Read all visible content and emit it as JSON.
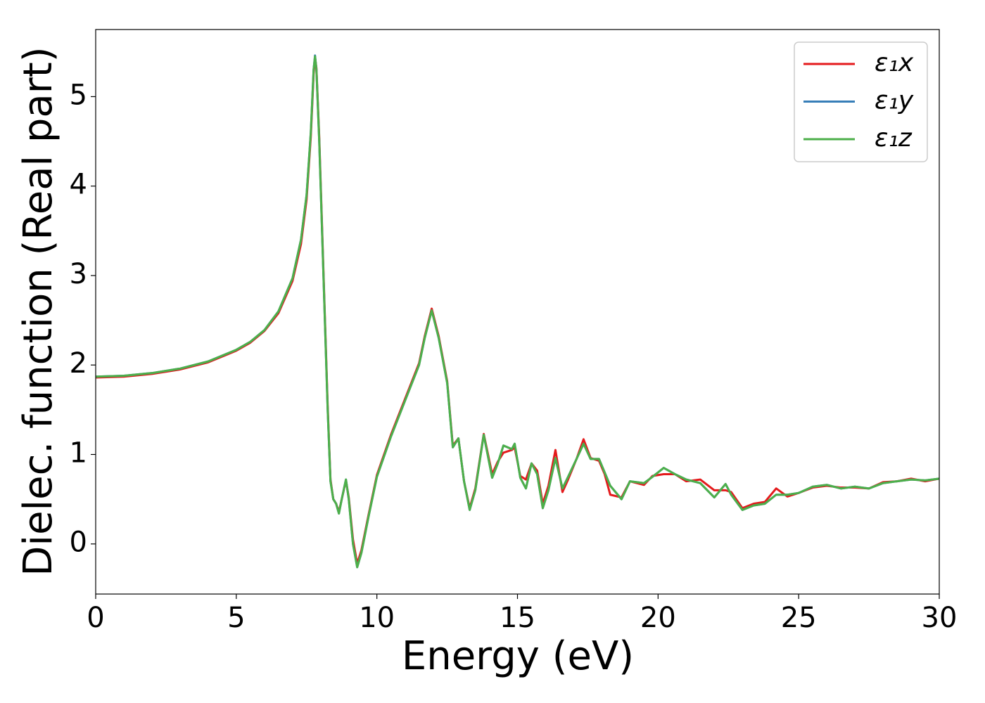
{
  "chart_data": {
    "type": "line",
    "xlabel": "Energy (eV)",
    "ylabel": "Dielec. function (Real part)",
    "x": [
      0,
      1,
      2,
      3,
      4,
      5,
      5.5,
      6,
      6.5,
      7,
      7.3,
      7.5,
      7.65,
      7.75,
      7.8,
      7.85,
      7.95,
      8.1,
      8.25,
      8.35,
      8.45,
      8.55,
      8.65,
      8.75,
      8.9,
      9.0,
      9.15,
      9.3,
      9.45,
      9.7,
      10,
      10.5,
      11,
      11.5,
      11.7,
      11.95,
      12.2,
      12.5,
      12.7,
      12.9,
      13.1,
      13.3,
      13.5,
      13.8,
      14.1,
      14.3,
      14.5,
      14.8,
      14.9,
      15.1,
      15.3,
      15.5,
      15.7,
      15.9,
      16.1,
      16.35,
      16.6,
      16.8,
      17.1,
      17.35,
      17.6,
      17.9,
      18.1,
      18.3,
      18.7,
      19,
      19.5,
      19.8,
      20.2,
      20.6,
      21,
      21.5,
      22,
      22.4,
      22.6,
      23,
      23.4,
      23.8,
      24.2,
      24.6,
      25,
      25.5,
      26,
      26.5,
      27,
      27.5,
      28,
      28.5,
      29,
      29.5,
      30
    ],
    "series": [
      {
        "name": "ε₁x",
        "color": "#e41a1c",
        "values": [
          1.86,
          1.87,
          1.9,
          1.95,
          2.03,
          2.16,
          2.25,
          2.38,
          2.58,
          2.94,
          3.35,
          3.85,
          4.55,
          5.25,
          5.44,
          5.32,
          4.55,
          3.05,
          1.55,
          0.72,
          0.5,
          0.45,
          0.36,
          0.5,
          0.71,
          0.52,
          0.05,
          -0.22,
          -0.07,
          0.32,
          0.77,
          1.22,
          1.62,
          2.02,
          2.32,
          2.63,
          2.32,
          1.82,
          1.1,
          1.18,
          0.7,
          0.4,
          0.62,
          1.23,
          0.78,
          0.92,
          1.02,
          1.05,
          1.08,
          0.76,
          0.72,
          0.9,
          0.82,
          0.45,
          0.65,
          1.05,
          0.58,
          0.72,
          0.95,
          1.17,
          0.96,
          0.93,
          0.78,
          0.55,
          0.52,
          0.7,
          0.66,
          0.76,
          0.78,
          0.78,
          0.7,
          0.72,
          0.6,
          0.6,
          0.58,
          0.4,
          0.45,
          0.47,
          0.62,
          0.53,
          0.57,
          0.63,
          0.65,
          0.63,
          0.63,
          0.62,
          0.69,
          0.7,
          0.73,
          0.7,
          0.73
        ]
      },
      {
        "name": "ε₁y",
        "color": "#377eb8",
        "values": [
          1.87,
          1.88,
          1.91,
          1.96,
          2.04,
          2.17,
          2.26,
          2.39,
          2.6,
          2.97,
          3.4,
          3.9,
          4.6,
          5.3,
          5.46,
          5.3,
          4.5,
          3.0,
          1.5,
          0.7,
          0.5,
          0.45,
          0.34,
          0.5,
          0.72,
          0.5,
          0.0,
          -0.26,
          -0.1,
          0.3,
          0.75,
          1.2,
          1.6,
          2.0,
          2.3,
          2.61,
          2.3,
          1.8,
          1.08,
          1.18,
          0.7,
          0.38,
          0.6,
          1.22,
          0.74,
          0.9,
          1.1,
          1.06,
          1.12,
          0.74,
          0.62,
          0.9,
          0.78,
          0.4,
          0.6,
          0.96,
          0.62,
          0.75,
          0.95,
          1.12,
          0.95,
          0.95,
          0.8,
          0.65,
          0.5,
          0.7,
          0.68,
          0.75,
          0.85,
          0.78,
          0.72,
          0.68,
          0.52,
          0.67,
          0.55,
          0.38,
          0.43,
          0.45,
          0.55,
          0.55,
          0.57,
          0.64,
          0.66,
          0.62,
          0.64,
          0.62,
          0.68,
          0.7,
          0.72,
          0.71,
          0.73
        ]
      },
      {
        "name": "ε₁z",
        "color": "#4daf4a",
        "values": [
          1.87,
          1.88,
          1.91,
          1.96,
          2.04,
          2.17,
          2.26,
          2.39,
          2.6,
          2.97,
          3.4,
          3.9,
          4.6,
          5.3,
          5.45,
          5.3,
          4.5,
          3.0,
          1.5,
          0.7,
          0.5,
          0.45,
          0.34,
          0.5,
          0.72,
          0.5,
          0.0,
          -0.26,
          -0.1,
          0.3,
          0.75,
          1.2,
          1.6,
          2.0,
          2.3,
          2.61,
          2.3,
          1.8,
          1.08,
          1.18,
          0.7,
          0.38,
          0.6,
          1.22,
          0.74,
          0.9,
          1.1,
          1.06,
          1.12,
          0.74,
          0.62,
          0.9,
          0.78,
          0.4,
          0.6,
          0.96,
          0.62,
          0.75,
          0.95,
          1.12,
          0.95,
          0.95,
          0.8,
          0.65,
          0.5,
          0.7,
          0.68,
          0.75,
          0.85,
          0.78,
          0.72,
          0.68,
          0.52,
          0.67,
          0.55,
          0.38,
          0.43,
          0.45,
          0.55,
          0.55,
          0.57,
          0.64,
          0.66,
          0.62,
          0.64,
          0.62,
          0.68,
          0.7,
          0.72,
          0.71,
          0.73
        ]
      }
    ],
    "xlim": [
      0,
      30
    ],
    "xticks": [
      0,
      5,
      10,
      15,
      20,
      25,
      30
    ],
    "ylim": [
      -0.56,
      5.75
    ],
    "yticks": [
      0,
      1,
      2,
      3,
      4,
      5
    ],
    "grid": false,
    "legend": "upper right"
  }
}
